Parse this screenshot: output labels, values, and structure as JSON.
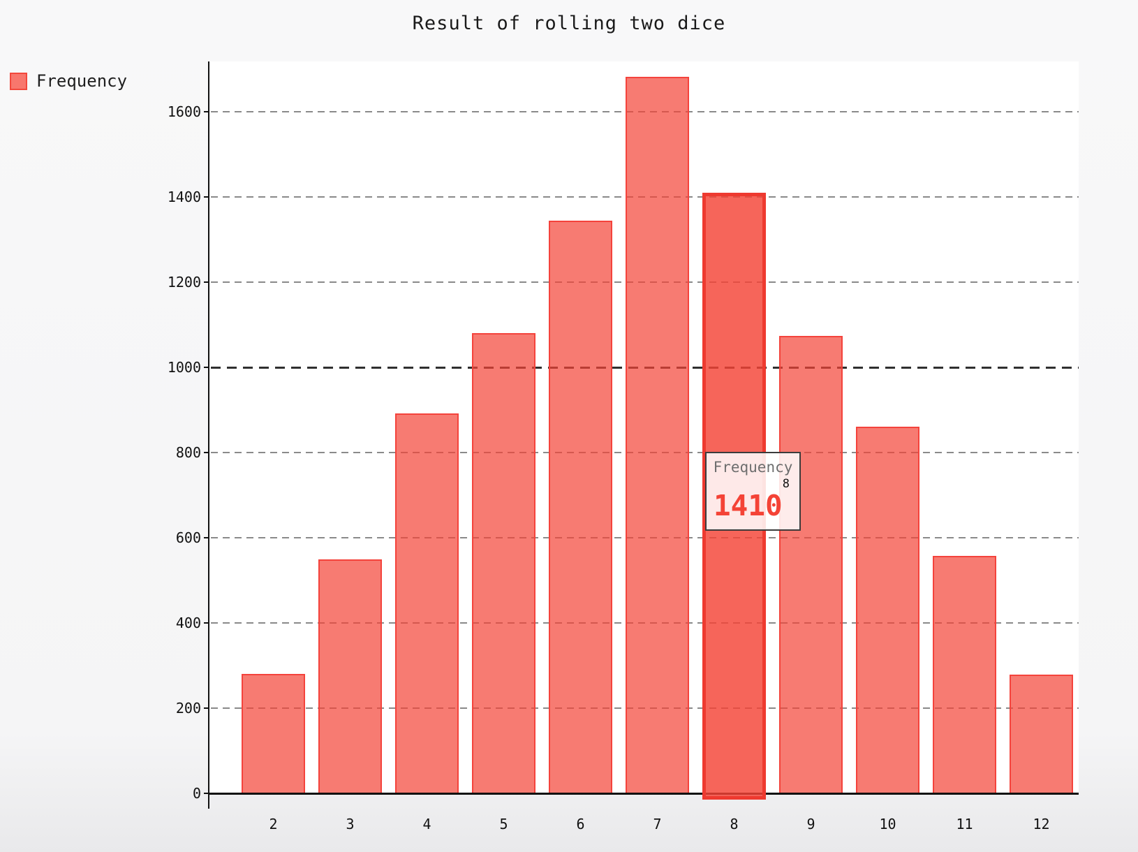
{
  "title": "Result of rolling two dice",
  "legend": {
    "label": "Frequency"
  },
  "tooltip": {
    "series": "Frequency",
    "category": "8",
    "value": "1410"
  },
  "chart_data": {
    "type": "bar",
    "title": "Result of rolling two dice",
    "categories": [
      "2",
      "3",
      "4",
      "5",
      "6",
      "7",
      "8",
      "9",
      "10",
      "11",
      "12"
    ],
    "series": [
      {
        "name": "Frequency",
        "values": [
          280,
          550,
          892,
          1080,
          1344,
          1682,
          1410,
          1074,
          860,
          557,
          279
        ]
      }
    ],
    "highlighted_category": "8",
    "highlighted_value": 1410,
    "y_ticks": [
      0,
      200,
      400,
      600,
      800,
      1000,
      1200,
      1400,
      1600
    ],
    "emphasized_gridline": 1000,
    "ylim": [
      0,
      1700
    ],
    "grid": true,
    "grid_style": "dashed",
    "legend_position": "top-left",
    "colors": {
      "bar_fill": "rgba(244,67,54,0.70)",
      "bar_border": "#f4433c",
      "bar_highlight_fill": "rgba(244,67,54,0.82)",
      "bar_highlight_border": "#ee3a30",
      "grid": "#8a8a8a",
      "grid_emphasis": "#2f2f2f",
      "axis": "#111111",
      "value_text": "#f44336",
      "legend_swatch_fill": "#f8776d",
      "legend_swatch_border": "#f2483c"
    }
  }
}
